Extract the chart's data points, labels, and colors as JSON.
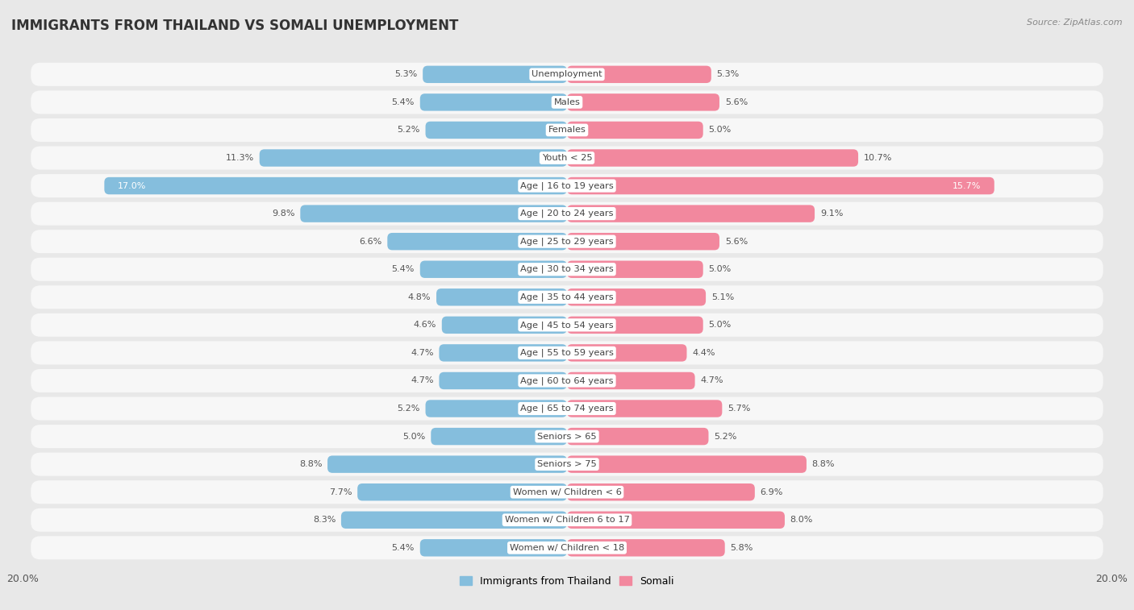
{
  "title": "IMMIGRANTS FROM THAILAND VS SOMALI UNEMPLOYMENT",
  "source": "Source: ZipAtlas.com",
  "categories": [
    "Unemployment",
    "Males",
    "Females",
    "Youth < 25",
    "Age | 16 to 19 years",
    "Age | 20 to 24 years",
    "Age | 25 to 29 years",
    "Age | 30 to 34 years",
    "Age | 35 to 44 years",
    "Age | 45 to 54 years",
    "Age | 55 to 59 years",
    "Age | 60 to 64 years",
    "Age | 65 to 74 years",
    "Seniors > 65",
    "Seniors > 75",
    "Women w/ Children < 6",
    "Women w/ Children 6 to 17",
    "Women w/ Children < 18"
  ],
  "thailand_values": [
    5.3,
    5.4,
    5.2,
    11.3,
    17.0,
    9.8,
    6.6,
    5.4,
    4.8,
    4.6,
    4.7,
    4.7,
    5.2,
    5.0,
    8.8,
    7.7,
    8.3,
    5.4
  ],
  "somali_values": [
    5.3,
    5.6,
    5.0,
    10.7,
    15.7,
    9.1,
    5.6,
    5.0,
    5.1,
    5.0,
    4.4,
    4.7,
    5.7,
    5.2,
    8.8,
    6.9,
    8.0,
    5.8
  ],
  "thailand_color": "#85bedd",
  "somali_color": "#f2889e",
  "background_color": "#e8e8e8",
  "row_color": "#f7f7f7",
  "axis_max": 20.0,
  "bar_height": 0.62,
  "label_fontsize": 8.2,
  "value_fontsize": 8.0,
  "title_fontsize": 12,
  "legend_label_thailand": "Immigrants from Thailand",
  "legend_label_somali": "Somali"
}
